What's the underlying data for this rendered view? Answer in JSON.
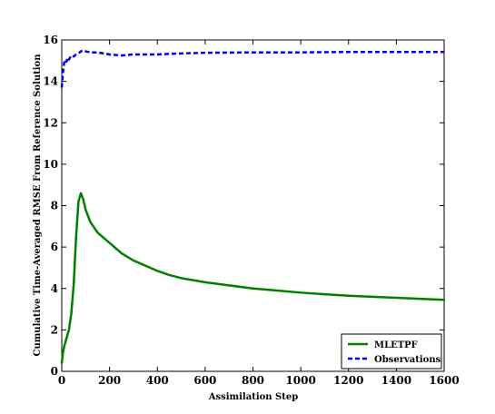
{
  "chart_data": {
    "type": "line",
    "xlabel": "Assimilation Step",
    "ylabel": "Cumulative Time-Averaged RMSE From Reference Solution",
    "xlim": [
      0,
      1600
    ],
    "ylim": [
      0,
      16
    ],
    "xticks": [
      "0",
      "200",
      "400",
      "600",
      "800",
      "1000",
      "1200",
      "1400",
      "1600"
    ],
    "yticks": [
      "0",
      "2",
      "4",
      "6",
      "8",
      "10",
      "12",
      "14",
      "16"
    ],
    "grid": false,
    "legend_position": "bottom-right",
    "series": [
      {
        "name": "MLETPF",
        "color": "#008000",
        "style": "solid",
        "x": [
          0,
          5,
          10,
          20,
          30,
          40,
          50,
          60,
          70,
          80,
          90,
          100,
          120,
          150,
          200,
          250,
          300,
          350,
          400,
          450,
          500,
          600,
          700,
          800,
          900,
          1000,
          1100,
          1200,
          1300,
          1400,
          1500,
          1600
        ],
        "y": [
          0.4,
          0.9,
          1.2,
          1.6,
          2.0,
          2.8,
          4.2,
          6.5,
          8.2,
          8.6,
          8.3,
          7.8,
          7.2,
          6.7,
          6.2,
          5.7,
          5.35,
          5.1,
          4.85,
          4.65,
          4.5,
          4.3,
          4.15,
          4.0,
          3.9,
          3.8,
          3.72,
          3.65,
          3.6,
          3.55,
          3.5,
          3.45
        ]
      },
      {
        "name": "Observations",
        "color": "#0000ff",
        "style": "dashed",
        "x": [
          0,
          5,
          10,
          15,
          20,
          25,
          30,
          40,
          50,
          60,
          70,
          80,
          90,
          100,
          120,
          150,
          200,
          250,
          300,
          400,
          500,
          600,
          800,
          1000,
          1200,
          1400,
          1600
        ],
        "y": [
          13.7,
          14.4,
          14.9,
          15.05,
          14.95,
          15.15,
          15.05,
          15.25,
          15.2,
          15.3,
          15.35,
          15.45,
          15.5,
          15.45,
          15.4,
          15.4,
          15.3,
          15.25,
          15.3,
          15.3,
          15.35,
          15.38,
          15.4,
          15.4,
          15.42,
          15.42,
          15.42
        ]
      }
    ]
  }
}
